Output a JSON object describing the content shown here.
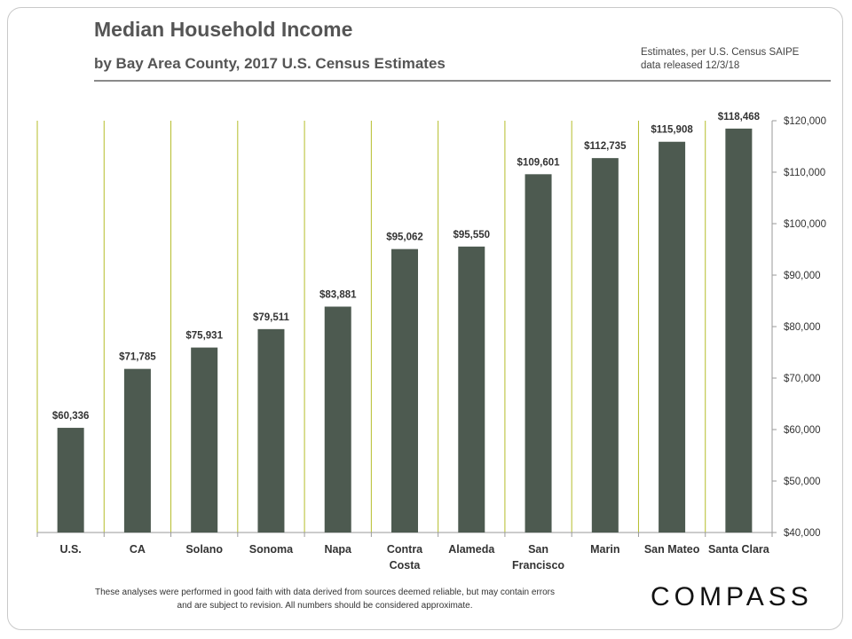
{
  "header": {
    "title": "Median Household Income",
    "subtitle": "by Bay Area County, 2017 U.S. Census Estimates",
    "source_line1": "Estimates, per U.S. Census SAIPE",
    "source_line2": "data released 12/3/18"
  },
  "footer": {
    "note_line1": "These analyses were performed in good faith with data derived from sources deemed reliable, but may contain errors",
    "note_line2": "and are subject to revision. All numbers should be considered approximate.",
    "logo": "COMPASS"
  },
  "colors": {
    "bar": "#4d5a50",
    "gridline": "#b5bd2a",
    "axis": "#9a9a9a",
    "text": "#333333"
  },
  "chart_data": {
    "type": "bar",
    "title": "Median Household Income",
    "subtitle": "by Bay Area County, 2017 U.S. Census Estimates",
    "categories": [
      [
        "U.S."
      ],
      [
        "CA"
      ],
      [
        "Solano"
      ],
      [
        "Sonoma"
      ],
      [
        "Napa"
      ],
      [
        "Contra",
        "Costa"
      ],
      [
        "Alameda"
      ],
      [
        "San",
        "Francisco"
      ],
      [
        "Marin"
      ],
      [
        "San Mateo"
      ],
      [
        "Santa Clara"
      ]
    ],
    "values": [
      60336,
      71785,
      75931,
      79511,
      83881,
      95062,
      95550,
      109601,
      112735,
      115908,
      118468
    ],
    "data_labels": [
      "$60,336",
      "$71,785",
      "$75,931",
      "$79,511",
      "$83,881",
      "$95,062",
      "$95,550",
      "$109,601",
      "$112,735",
      "$115,908",
      "$118,468"
    ],
    "ylim": [
      40000,
      120000
    ],
    "yticks": [
      40000,
      50000,
      60000,
      70000,
      80000,
      90000,
      100000,
      110000,
      120000
    ],
    "ytick_labels": [
      "$40,000",
      "$50,000",
      "$60,000",
      "$70,000",
      "$80,000",
      "$90,000",
      "$100,000",
      "$110,000",
      "$120,000"
    ],
    "yaxis_side": "right",
    "grid": "vertical-category-separators",
    "legend": "none"
  }
}
